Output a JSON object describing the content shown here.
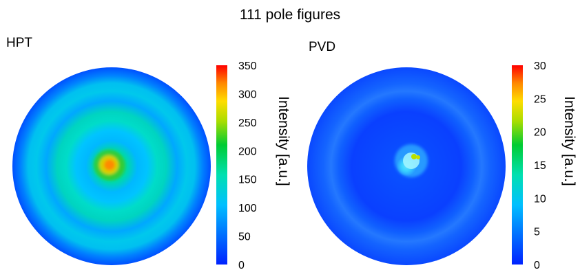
{
  "chart_data": {
    "title": "111 pole figures",
    "panels": [
      {
        "type": "heatmap",
        "label": "HPT",
        "colorbar": {
          "label": "Intensity [a.u.]",
          "range": [
            0,
            350
          ],
          "ticks": [
            "0",
            "50",
            "100",
            "150",
            "200",
            "250",
            "300",
            "350"
          ]
        },
        "description_values": {
          "center_peak": 330,
          "inner_ring": 110,
          "outer_ring": 110,
          "background": 55
        }
      },
      {
        "type": "heatmap",
        "label": "PVD",
        "colorbar": {
          "label": "Intensity [a.u.]",
          "range": [
            0,
            30
          ],
          "ticks": [
            "0",
            "5",
            "10",
            "15",
            "20",
            "25",
            "30"
          ]
        },
        "description_values": {
          "center_peak": 22,
          "faint_ring": 5,
          "background": 2
        }
      }
    ],
    "colors": {
      "colormap": [
        "#0033ff",
        "#00b4ff",
        "#00e0c8",
        "#00cc44",
        "#dddd00",
        "#ff8800",
        "#ff0000"
      ]
    }
  }
}
